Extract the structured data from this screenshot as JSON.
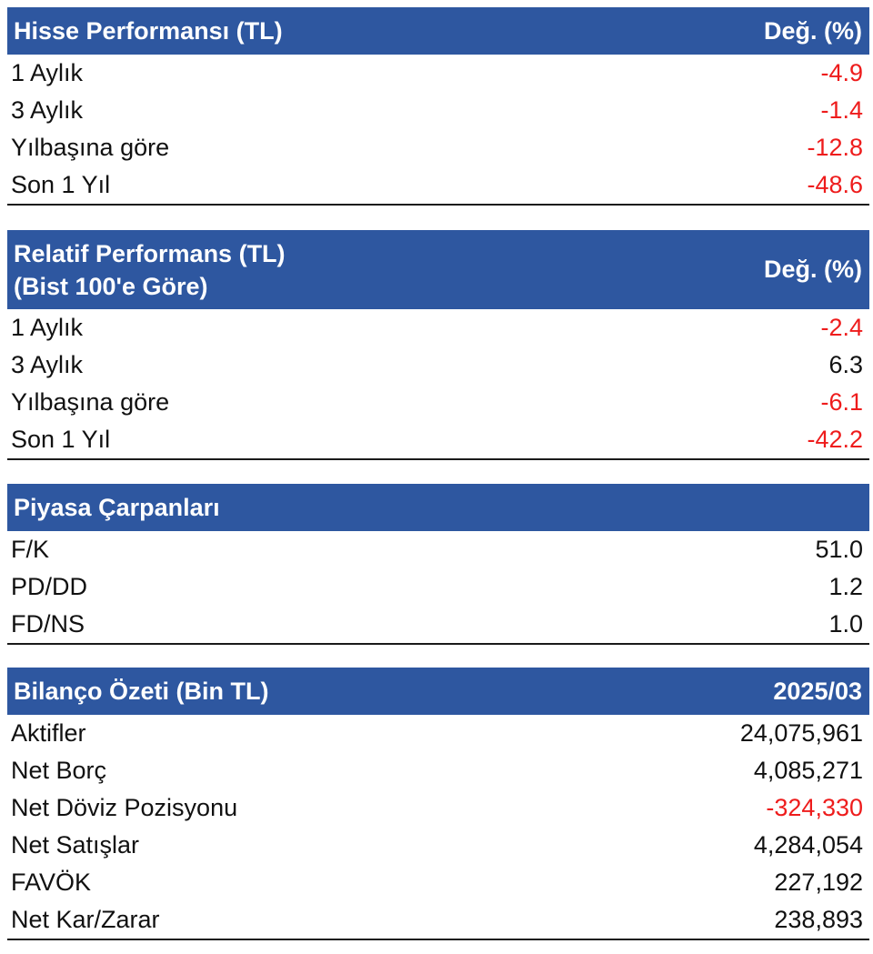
{
  "sections": [
    {
      "title_lines": [
        "Hisse Performansı (TL)"
      ],
      "column_label": "Değ. (%)",
      "rows": [
        {
          "label": "1 Aylık",
          "value": "-4.9",
          "negative": true
        },
        {
          "label": "3 Aylık",
          "value": "-1.4",
          "negative": true
        },
        {
          "label": "Yılbaşına göre",
          "value": "-12.8",
          "negative": true
        },
        {
          "label": "Son 1 Yıl",
          "value": "-48.6",
          "negative": true
        }
      ]
    },
    {
      "title_lines": [
        "Relatif Performans (TL)",
        "(Bist 100'e Göre)"
      ],
      "column_label": "Değ. (%)",
      "rows": [
        {
          "label": "1 Aylık",
          "value": "-2.4",
          "negative": true
        },
        {
          "label": "3 Aylık",
          "value": "6.3",
          "negative": false
        },
        {
          "label": "Yılbaşına göre",
          "value": "-6.1",
          "negative": true
        },
        {
          "label": "Son 1 Yıl",
          "value": "-42.2",
          "negative": true
        }
      ]
    },
    {
      "title_lines": [
        "Piyasa Çarpanları"
      ],
      "column_label": "",
      "rows": [
        {
          "label": "F/K",
          "value": "51.0",
          "negative": false
        },
        {
          "label": "PD/DD",
          "value": "1.2",
          "negative": false
        },
        {
          "label": "FD/NS",
          "value": "1.0",
          "negative": false
        }
      ]
    },
    {
      "title_lines": [
        "Bilanço Özeti (Bin TL)"
      ],
      "column_label": "2025/03",
      "rows": [
        {
          "label": "Aktifler",
          "value": "24,075,961",
          "negative": false
        },
        {
          "label": "Net Borç",
          "value": "4,085,271",
          "negative": false
        },
        {
          "label": "Net Döviz Pozisyonu",
          "value": "-324,330",
          "negative": true
        },
        {
          "label": "Net Satışlar",
          "value": "4,284,054",
          "negative": false
        },
        {
          "label": "FAVÖK",
          "value": "227,192",
          "negative": false
        },
        {
          "label": "Net Kar/Zarar",
          "value": "238,893",
          "negative": false
        }
      ]
    }
  ],
  "colors": {
    "header_bg": "#2e57a0",
    "header_text": "#ffffff",
    "negative": "#ee1c1c",
    "positive": "#111111"
  }
}
